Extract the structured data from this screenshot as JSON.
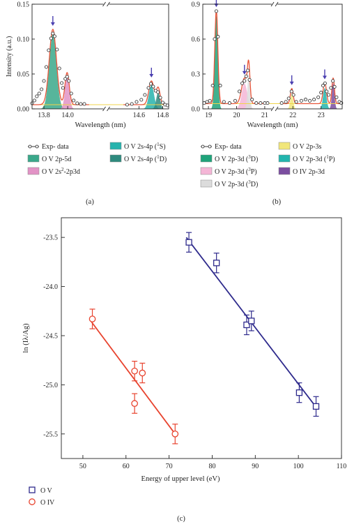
{
  "chart_data": [
    {
      "panel": "(a)",
      "type": "line",
      "xlabel": "Wavelength (nm)",
      "ylabel": "Intensity (a.u.)",
      "xlim": [
        13.7,
        14.85
      ],
      "x_break": [
        14.18,
        14.47
      ],
      "ylim": [
        0,
        0.15
      ],
      "xticks": [
        "13.8",
        "14.0",
        "14.6",
        "14.8"
      ],
      "yticks": [
        "0.00",
        "0.05",
        "0.10",
        "0.15"
      ],
      "exp_points": [
        [
          13.7,
          0.008
        ],
        [
          13.72,
          0.012
        ],
        [
          13.74,
          0.018
        ],
        [
          13.76,
          0.022
        ],
        [
          13.78,
          0.028
        ],
        [
          13.8,
          0.04
        ],
        [
          13.82,
          0.06
        ],
        [
          13.84,
          0.084
        ],
        [
          13.86,
          0.101
        ],
        [
          13.875,
          0.108
        ],
        [
          13.89,
          0.104
        ],
        [
          13.91,
          0.085
        ],
        [
          13.93,
          0.058
        ],
        [
          13.95,
          0.037
        ],
        [
          13.96,
          0.03
        ],
        [
          13.98,
          0.043
        ],
        [
          13.995,
          0.046
        ],
        [
          14.01,
          0.04
        ],
        [
          14.03,
          0.022
        ],
        [
          14.05,
          0.012
        ],
        [
          14.08,
          0.008
        ],
        [
          14.11,
          0.007
        ],
        [
          14.14,
          0.007
        ],
        [
          14.5,
          0.006
        ],
        [
          14.54,
          0.007
        ],
        [
          14.58,
          0.01
        ],
        [
          14.62,
          0.013
        ],
        [
          14.65,
          0.02
        ],
        [
          14.68,
          0.03
        ],
        [
          14.7,
          0.036
        ],
        [
          14.72,
          0.032
        ],
        [
          14.74,
          0.026
        ],
        [
          14.76,
          0.024
        ],
        [
          14.78,
          0.016
        ],
        [
          14.8,
          0.009
        ],
        [
          14.82,
          0.006
        ],
        [
          14.84,
          0.005
        ]
      ],
      "peaks": [
        {
          "center": 13.875,
          "height": 0.108,
          "width": 0.03,
          "fill": "#3aa88a",
          "arrow": true
        },
        {
          "center": 13.995,
          "height": 0.046,
          "width": 0.018,
          "fill": "#e293c6",
          "arrow": false
        },
        {
          "center": 14.705,
          "height": 0.034,
          "width": 0.022,
          "fill": "#27b3ad",
          "arrow": true
        },
        {
          "center": 14.762,
          "height": 0.024,
          "width": 0.016,
          "fill": "#2e8a7e",
          "arrow": false
        }
      ],
      "baseline": 0.006,
      "fit_color": "#e8553a",
      "legend": [
        {
          "label": "Exp- data",
          "marker": "open-circle-line"
        },
        {
          "label": "O V 2p-5d",
          "marker": "swatch",
          "color": "#3aa88a"
        },
        {
          "label": "O V 2s",
          "sup": "2",
          "tail": "-2p3d",
          "marker": "swatch",
          "color": "#e293c6"
        },
        {
          "label": "O V 2s-4p (",
          "sup": "1",
          "tail": "S)",
          "marker": "swatch",
          "color": "#27b3ad"
        },
        {
          "label": "O V 2s-4p (",
          "sup": "1",
          "tail": "D)",
          "marker": "swatch",
          "color": "#2e8a7e"
        }
      ]
    },
    {
      "panel": "(b)",
      "type": "line",
      "xlabel": "Wavelength (nm)",
      "ylabel": "",
      "xlim": [
        18.8,
        23.75
      ],
      "x_break": [
        21.15,
        21.55
      ],
      "ylim": [
        0,
        0.9
      ],
      "xticks": [
        "19",
        "20",
        "21",
        "22",
        "23"
      ],
      "yticks": [
        "0.0",
        "0.3",
        "0.6",
        "0.9"
      ],
      "exp_points": [
        [
          18.85,
          0.05
        ],
        [
          18.95,
          0.06
        ],
        [
          19.05,
          0.07
        ],
        [
          19.15,
          0.2
        ],
        [
          19.22,
          0.6
        ],
        [
          19.28,
          0.84
        ],
        [
          19.34,
          0.62
        ],
        [
          19.42,
          0.2
        ],
        [
          19.55,
          0.06
        ],
        [
          19.75,
          0.05
        ],
        [
          19.95,
          0.07
        ],
        [
          20.1,
          0.15
        ],
        [
          20.2,
          0.22
        ],
        [
          20.28,
          0.24
        ],
        [
          20.34,
          0.28
        ],
        [
          20.4,
          0.33
        ],
        [
          20.46,
          0.25
        ],
        [
          20.55,
          0.08
        ],
        [
          20.7,
          0.05
        ],
        [
          20.85,
          0.05
        ],
        [
          21.0,
          0.05
        ],
        [
          21.1,
          0.05
        ],
        [
          21.6,
          0.05
        ],
        [
          21.75,
          0.06
        ],
        [
          21.85,
          0.09
        ],
        [
          21.95,
          0.15
        ],
        [
          22.02,
          0.12
        ],
        [
          22.12,
          0.06
        ],
        [
          22.3,
          0.07
        ],
        [
          22.45,
          0.08
        ],
        [
          22.6,
          0.07
        ],
        [
          22.75,
          0.08
        ],
        [
          22.9,
          0.1
        ],
        [
          23.0,
          0.14
        ],
        [
          23.07,
          0.2
        ],
        [
          23.14,
          0.22
        ],
        [
          23.2,
          0.15
        ],
        [
          23.27,
          0.12
        ],
        [
          23.35,
          0.18
        ],
        [
          23.42,
          0.24
        ],
        [
          23.48,
          0.19
        ],
        [
          23.55,
          0.1
        ],
        [
          23.65,
          0.06
        ],
        [
          23.72,
          0.05
        ]
      ],
      "peaks": [
        {
          "center": 19.28,
          "height": 0.8,
          "width": 0.055,
          "fill": "#1fa37a",
          "arrow": true
        },
        {
          "center": 20.28,
          "height": 0.22,
          "width": 0.1,
          "fill": "#f4b6d6",
          "arrow": true
        },
        {
          "center": 20.43,
          "height": 0.3,
          "width": 0.045,
          "fill": "#dcdcdc",
          "arrow": false
        },
        {
          "center": 21.96,
          "height": 0.13,
          "width": 0.05,
          "fill": "#f1e67a",
          "arrow": true
        },
        {
          "center": 23.13,
          "height": 0.18,
          "width": 0.06,
          "fill": "#22b5ae",
          "arrow": true
        },
        {
          "center": 23.43,
          "height": 0.22,
          "width": 0.045,
          "fill": "#7b4ea0",
          "arrow": false
        }
      ],
      "baseline": 0.045,
      "fit_color": "#e8553a",
      "legend": [
        {
          "label": "Exp- data",
          "marker": "open-circle-line"
        },
        {
          "label": "O V 2p-3s",
          "marker": "swatch",
          "color": "#f1e67a"
        },
        {
          "label": "O V 2p-3d (",
          "sup": "3",
          "tail": "D)",
          "marker": "swatch",
          "color": "#1fa37a"
        },
        {
          "label": "O V 2p-3d (",
          "sup": "1",
          "tail": "P)",
          "marker": "swatch",
          "color": "#22b5ae"
        },
        {
          "label": "O V 2p-3d (",
          "sup": "3",
          "tail": "P)",
          "marker": "swatch",
          "color": "#f4b6d6"
        },
        {
          "label": "O IV 2p-3d",
          "marker": "swatch",
          "color": "#7b4ea0"
        },
        {
          "label": "O V 2p-3d (",
          "sup": "3",
          "tail": "D)",
          "marker": "swatch",
          "color": "#dcdcdc"
        }
      ]
    },
    {
      "panel": "(c)",
      "type": "scatter",
      "xlabel": "Energy of upper level (eV)",
      "ylabel": "ln (Iλ/Ag)",
      "xlim": [
        45,
        110
      ],
      "ylim": [
        -25.75,
        -23.3
      ],
      "xticks": [
        50,
        60,
        70,
        80,
        90,
        100,
        110
      ],
      "yticks": [
        -23.5,
        -24.0,
        -24.5,
        -25.0,
        -25.5
      ],
      "ytick_labels": [
        "-23.5",
        "-24.0",
        "-24.5",
        "-25.0",
        "-25.5"
      ],
      "series": [
        {
          "name": "O V",
          "marker": "open-square",
          "color": "#2e2a8c",
          "points": [
            [
              74.6,
              -23.55
            ],
            [
              81.0,
              -23.76
            ],
            [
              88.0,
              -24.39
            ],
            [
              89.1,
              -24.35
            ],
            [
              100.2,
              -25.08
            ],
            [
              104.1,
              -25.22
            ]
          ],
          "yerr": 0.1,
          "fit": [
            [
              74.0,
              -23.5
            ],
            [
              104.5,
              -25.25
            ]
          ]
        },
        {
          "name": "O IV",
          "marker": "open-circle",
          "color": "#e8432e",
          "points": [
            [
              52.2,
              -24.33
            ],
            [
              62.0,
              -24.86
            ],
            [
              63.8,
              -24.88
            ],
            [
              62.0,
              -25.19
            ],
            [
              71.4,
              -25.5
            ]
          ],
          "yerr": 0.1,
          "fit": [
            [
              52.0,
              -24.36
            ],
            [
              71.4,
              -25.5
            ]
          ]
        }
      ]
    }
  ],
  "captions": {
    "a": "(a)",
    "b": "(b)",
    "c": "(c)"
  }
}
